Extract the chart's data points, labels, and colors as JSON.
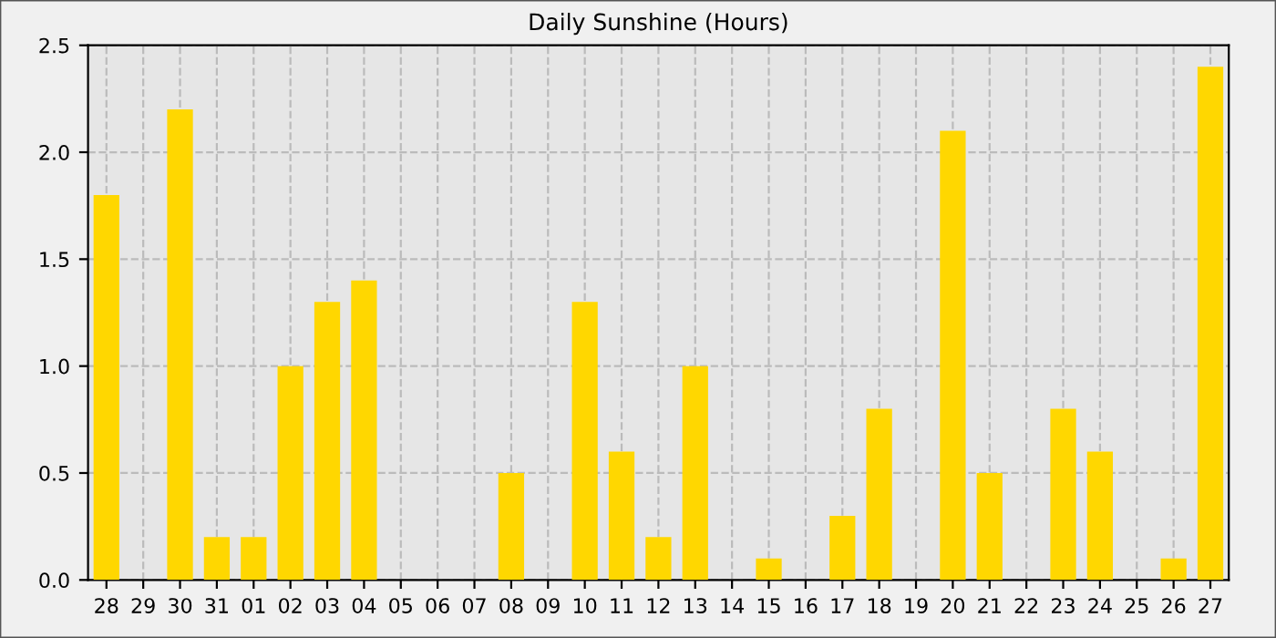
{
  "chart_data": {
    "type": "bar",
    "title": "Daily Sunshine (Hours)",
    "categories": [
      "28",
      "29",
      "30",
      "31",
      "01",
      "02",
      "03",
      "04",
      "05",
      "06",
      "07",
      "08",
      "09",
      "10",
      "11",
      "12",
      "13",
      "14",
      "15",
      "16",
      "17",
      "18",
      "19",
      "20",
      "21",
      "22",
      "23",
      "24",
      "25",
      "26",
      "27"
    ],
    "values": [
      1.8,
      0,
      2.2,
      0.2,
      0.2,
      1.0,
      1.3,
      1.4,
      0,
      0,
      0,
      0.5,
      0,
      1.3,
      0.6,
      0.2,
      1.0,
      0,
      0.1,
      0,
      0.3,
      0.8,
      0,
      2.1,
      0.5,
      0,
      0.8,
      0.6,
      0,
      0.1,
      2.4
    ],
    "color": "#ffd700",
    "ylim": [
      0,
      2.5
    ],
    "yticks": [
      {
        "value": 0,
        "label": "0.0"
      },
      {
        "value": 0.5,
        "label": "0.5"
      },
      {
        "value": 1,
        "label": "1.0"
      },
      {
        "value": 1.5,
        "label": "1.5"
      },
      {
        "value": 2,
        "label": "2.0"
      },
      {
        "value": 2.5,
        "label": "2.5"
      }
    ],
    "grid": true
  }
}
